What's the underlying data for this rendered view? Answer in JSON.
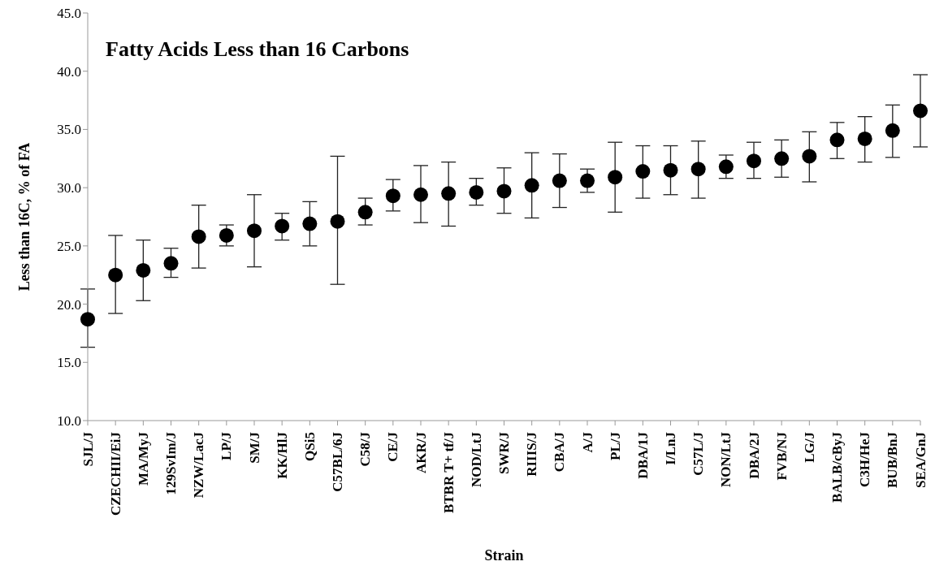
{
  "chart_data": {
    "type": "scatter",
    "title": "Fatty Acids Less than 16 Carbons",
    "xlabel": "Strain",
    "ylabel": "Less than 16C, % of FA",
    "categories": [
      "SJL/J",
      "CZECHII/EiJ",
      "MA/MyJ",
      "129SvIm/J",
      "NZW/LacJ",
      "LP/J",
      "SM/J",
      "KK/HlJ",
      "QSi5",
      "C57BL/6J",
      "C58/J",
      "CE/J",
      "AKR/J",
      "BTBR T+ tf/J",
      "NOD/LtJ",
      "SWR/J",
      "RIIIS/J",
      "CBA/J",
      "A/J",
      "PL/J",
      "DBA/1J",
      "I/LnJ",
      "C57L/J",
      "NON/LtJ",
      "DBA/2J",
      "FVB/NJ",
      "LG/J",
      "BALB/cByJ",
      "C3H/HeJ",
      "BUB/BnJ",
      "SEA/GnJ"
    ],
    "values": [
      18.7,
      22.5,
      22.9,
      23.5,
      25.8,
      25.9,
      26.3,
      26.7,
      26.9,
      27.1,
      27.9,
      29.3,
      29.4,
      29.5,
      29.6,
      29.7,
      30.2,
      30.6,
      30.6,
      30.9,
      31.4,
      31.5,
      31.6,
      31.8,
      32.3,
      32.5,
      32.7,
      34.1,
      34.2,
      34.9,
      36.6
    ],
    "errors": [
      [
        16.3,
        21.3
      ],
      [
        19.2,
        25.9
      ],
      [
        20.3,
        25.5
      ],
      [
        22.3,
        24.8
      ],
      [
        23.1,
        28.5
      ],
      [
        25.0,
        26.8
      ],
      [
        23.2,
        29.4
      ],
      [
        25.5,
        27.8
      ],
      [
        25.0,
        28.8
      ],
      [
        21.7,
        32.7
      ],
      [
        26.8,
        29.1
      ],
      [
        28.0,
        30.7
      ],
      [
        27.0,
        31.9
      ],
      [
        26.7,
        32.2
      ],
      [
        28.5,
        30.8
      ],
      [
        27.8,
        31.7
      ],
      [
        27.4,
        33.0
      ],
      [
        28.3,
        32.9
      ],
      [
        29.6,
        31.6
      ],
      [
        27.9,
        33.9
      ],
      [
        29.1,
        33.6
      ],
      [
        29.4,
        33.6
      ],
      [
        29.1,
        34.0
      ],
      [
        30.8,
        32.8
      ],
      [
        30.8,
        33.9
      ],
      [
        30.9,
        34.1
      ],
      [
        30.5,
        34.8
      ],
      [
        32.5,
        35.6
      ],
      [
        32.2,
        36.1
      ],
      [
        32.6,
        37.1
      ],
      [
        33.5,
        39.7
      ]
    ],
    "color": "#000000",
    "marker": "circle",
    "grid": false,
    "legend": false,
    "ylim": [
      10,
      45
    ],
    "yticks": [
      {
        "value": 10,
        "label": "10.0"
      },
      {
        "value": 15,
        "label": "15.0"
      },
      {
        "value": 20,
        "label": "20.0"
      },
      {
        "value": 25,
        "label": "25.0"
      },
      {
        "value": 30,
        "label": "30.0"
      },
      {
        "value": 35,
        "label": "35.0"
      },
      {
        "value": 40,
        "label": "40.0"
      },
      {
        "value": 45,
        "label": "45.0"
      }
    ]
  }
}
